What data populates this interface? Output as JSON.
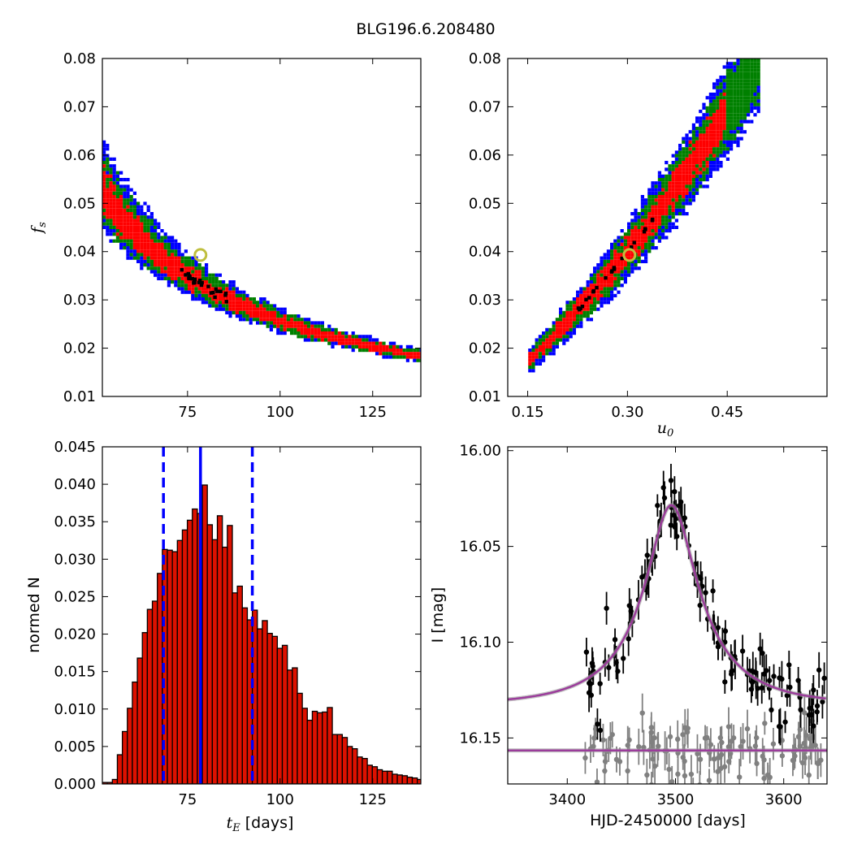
{
  "title": "BLG196.6.208480",
  "colors": {
    "sigma1": "#ff0000",
    "sigma2": "#008000",
    "sigma3": "#0000ff",
    "chain": "#000000",
    "best": "#bfbf3f",
    "median": "#0000ff",
    "hist": "#dd1100",
    "model": "#9b3c9b",
    "data_event": "#000000",
    "data_baseline": "#808080"
  },
  "chart_data": [
    {
      "id": "ax1",
      "type": "heatmap",
      "description": "posterior density of f_s versus t_E",
      "xlabel": "",
      "ylabel": "f",
      "ylabel_sub": "s",
      "xlim": [
        52,
        138
      ],
      "ylim": [
        0.01,
        0.08
      ],
      "xticks": [
        75,
        100,
        125
      ],
      "yticks": [
        0.01,
        0.02,
        0.03,
        0.04,
        0.05,
        0.06,
        0.07,
        0.08
      ],
      "ytick_labels": [
        "0.01",
        "0.02",
        "0.03",
        "0.04",
        "0.05",
        "0.06",
        "0.07",
        "0.08"
      ],
      "ridge": {
        "a": 0.0407,
        "b": 4.0,
        "y_from": 0.0172,
        "y_to": 0.0785
      },
      "best_fit": [
        78.5,
        0.0393
      ]
    },
    {
      "id": "ax2",
      "type": "heatmap",
      "description": "posterior density of f_s versus u_0",
      "xlabel": "u",
      "xlabel_sub": "0",
      "ylabel": "",
      "xlim": [
        0.12,
        0.6
      ],
      "ylim": [
        0.01,
        0.08
      ],
      "xticks": [
        0.15,
        0.3,
        0.45
      ],
      "xtick_labels": [
        "0.15",
        "0.30",
        "0.45"
      ],
      "yticks": [
        0.01,
        0.02,
        0.03,
        0.04,
        0.05,
        0.06,
        0.07,
        0.08
      ],
      "ytick_labels": [
        "0.01",
        "0.02",
        "0.03",
        "0.04",
        "0.05",
        "0.06",
        "0.07",
        "0.08"
      ],
      "ridge": {
        "a": 0.1183,
        "b": 0.00395,
        "c": 0.127,
        "x_from": 0.15,
        "x_to": 0.5
      },
      "best_fit": [
        0.303,
        0.0393
      ]
    },
    {
      "id": "ax3",
      "type": "bar",
      "xlabel": "t",
      "xlabel_sub": "E",
      "xlabel_unit": " [days]",
      "ylabel": "normed N",
      "xlim": [
        52,
        138
      ],
      "ylim": [
        0,
        0.045
      ],
      "xticks": [
        75,
        100,
        125
      ],
      "yticks": [
        0,
        0.005,
        0.01,
        0.015,
        0.02,
        0.025,
        0.03,
        0.035,
        0.04,
        0.045
      ],
      "ytick_labels": [
        "0.000",
        "0.005",
        "0.010",
        "0.015",
        "0.020",
        "0.025",
        "0.030",
        "0.035",
        "0.040",
        "0.045"
      ],
      "bin_start": 52,
      "bin_width": 1.35,
      "values": [
        0.0002,
        0.0002,
        0.0006,
        0.0039,
        0.007,
        0.0101,
        0.0136,
        0.0168,
        0.0202,
        0.0233,
        0.0244,
        0.0281,
        0.0313,
        0.0312,
        0.031,
        0.0325,
        0.0339,
        0.0352,
        0.0367,
        0.0361,
        0.0399,
        0.0346,
        0.0326,
        0.0358,
        0.0316,
        0.0345,
        0.0255,
        0.0264,
        0.0235,
        0.0219,
        0.0232,
        0.0207,
        0.0218,
        0.0201,
        0.0197,
        0.0181,
        0.0185,
        0.0152,
        0.0155,
        0.0121,
        0.0101,
        0.0085,
        0.0097,
        0.0095,
        0.0096,
        0.0102,
        0.0066,
        0.0066,
        0.0062,
        0.005,
        0.0047,
        0.0036,
        0.0034,
        0.0025,
        0.0023,
        0.0019,
        0.0017,
        0.0017,
        0.0013,
        0.0012,
        0.0011,
        0.0009,
        0.0008,
        0.0006,
        0.0005,
        0.0004
      ],
      "median": 78.5,
      "lower": 68.5,
      "upper": 92.5
    },
    {
      "id": "ax4",
      "type": "scatter",
      "xlabel": "HJD-2450000 [days]",
      "ylabel": "I [mag]",
      "xlim": [
        3345,
        3640
      ],
      "ylim": [
        16.174,
        15.998
      ],
      "xticks": [
        3400,
        3500,
        3600
      ],
      "yticks": [
        16.0,
        16.05,
        16.1,
        16.15
      ],
      "ytick_labels": [
        "16.00",
        "16.05",
        "16.10",
        "16.15"
      ],
      "model": {
        "baseline": 16.1327,
        "amplitude": 0.1185,
        "t0": 3496.2,
        "tE": 78.5,
        "u0": 0.303
      },
      "baseline_model": 16.1565,
      "event_points": {
        "count": 120,
        "x_from": 3415,
        "x_to": 3640,
        "noise": 0.009,
        "err": 0.008,
        "seed": 11
      },
      "baseline_points": {
        "count": 115,
        "x_from": 3415,
        "x_to": 3640,
        "noise": 0.008,
        "err": 0.008,
        "seed": 29
      }
    }
  ]
}
